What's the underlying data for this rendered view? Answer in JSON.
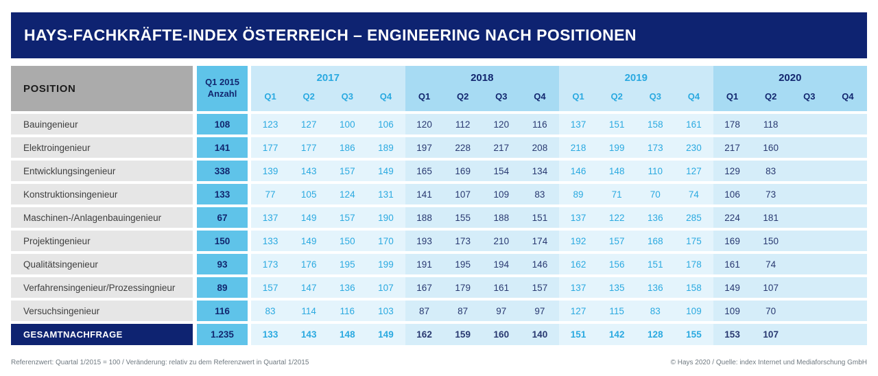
{
  "title": "HAYS-FACHKRÄFTE-INDEX ÖSTERREICH – ENGINEERING NACH POSITIONEN",
  "colors": {
    "navy_bar": "#0E2371",
    "medium_blue": "#5FC3E9",
    "bright_blue_text": "#2AA9E0",
    "navy_text": "#12266E",
    "year_header_light": "#CBE9F8",
    "year_header_dark": "#A7DBF3",
    "cell_light": "#E4F4FC",
    "cell_dark": "#D5EDF9",
    "position_header_gray": "#ABABAB",
    "row_label_gray": "#E6E6E6"
  },
  "footer": {
    "left": "Referenzwert: Quartal 1/2015 = 100 / Veränderung: relativ zu dem Referenzwert in Quartal 1/2015",
    "right": "© Hays 2020 / Quelle: index Internet und Mediaforschung GmbH"
  },
  "chart_data": {
    "type": "table",
    "title": "HAYS-FACHKRÄFTE-INDEX ÖSTERREICH – ENGINEERING NACH POSITIONEN",
    "position_header": "POSITION",
    "anzahl_header": {
      "line1": "Q1 2015",
      "line2": "Anzahl"
    },
    "years": [
      {
        "label": "2017",
        "shade": "light",
        "quarters": [
          "Q1",
          "Q2",
          "Q3",
          "Q4"
        ]
      },
      {
        "label": "2018",
        "shade": "dark",
        "quarters": [
          "Q1",
          "Q2",
          "Q3",
          "Q4"
        ]
      },
      {
        "label": "2019",
        "shade": "light",
        "quarters": [
          "Q1",
          "Q2",
          "Q3",
          "Q4"
        ]
      },
      {
        "label": "2020",
        "shade": "dark",
        "quarters": [
          "Q1",
          "Q2",
          "Q3",
          "Q4"
        ]
      }
    ],
    "rows": [
      {
        "label": "Bauingenieur",
        "anzahl": "108",
        "values": [
          123,
          127,
          100,
          106,
          120,
          112,
          120,
          116,
          137,
          151,
          158,
          161,
          178,
          118,
          "",
          ""
        ]
      },
      {
        "label": "Elektroingenieur",
        "anzahl": "141",
        "values": [
          177,
          177,
          186,
          189,
          197,
          228,
          217,
          208,
          218,
          199,
          173,
          230,
          217,
          160,
          "",
          ""
        ]
      },
      {
        "label": "Entwicklungsingenieur",
        "anzahl": "338",
        "values": [
          139,
          143,
          157,
          149,
          165,
          169,
          154,
          134,
          146,
          148,
          110,
          127,
          129,
          83,
          "",
          ""
        ]
      },
      {
        "label": "Konstruktionsingenieur",
        "anzahl": "133",
        "values": [
          77,
          105,
          124,
          131,
          141,
          107,
          109,
          83,
          89,
          71,
          70,
          74,
          106,
          73,
          "",
          ""
        ]
      },
      {
        "label": "Maschinen-/Anlagenbauingenieur",
        "anzahl": "67",
        "values": [
          137,
          149,
          157,
          190,
          188,
          155,
          188,
          151,
          137,
          122,
          136,
          285,
          224,
          181,
          "",
          ""
        ]
      },
      {
        "label": "Projektingenieur",
        "anzahl": "150",
        "values": [
          133,
          149,
          150,
          170,
          193,
          173,
          210,
          174,
          192,
          157,
          168,
          175,
          169,
          150,
          "",
          ""
        ]
      },
      {
        "label": "Qualitätsingenieur",
        "anzahl": "93",
        "values": [
          173,
          176,
          195,
          199,
          191,
          195,
          194,
          146,
          162,
          156,
          151,
          178,
          161,
          74,
          "",
          ""
        ]
      },
      {
        "label": "Verfahrensingenieur/Prozessingnieur",
        "anzahl": "89",
        "values": [
          157,
          147,
          136,
          107,
          167,
          179,
          161,
          157,
          137,
          135,
          136,
          158,
          149,
          107,
          "",
          ""
        ]
      },
      {
        "label": "Versuchsingenieur",
        "anzahl": "116",
        "values": [
          83,
          114,
          116,
          103,
          87,
          87,
          97,
          97,
          127,
          115,
          83,
          109,
          109,
          70,
          "",
          ""
        ]
      }
    ],
    "total": {
      "label": "GESAMTNACHFRAGE",
      "anzahl": "1.235",
      "values": [
        133,
        143,
        148,
        149,
        162,
        159,
        160,
        140,
        151,
        142,
        128,
        155,
        153,
        107,
        "",
        ""
      ]
    },
    "reference_note": "Referenzwert: Quartal 1/2015 = 100 / Veränderung: relativ zu dem Referenzwert in Quartal 1/2015",
    "source_note": "© Hays 2020 / Quelle: index Internet und Mediaforschung GmbH"
  }
}
